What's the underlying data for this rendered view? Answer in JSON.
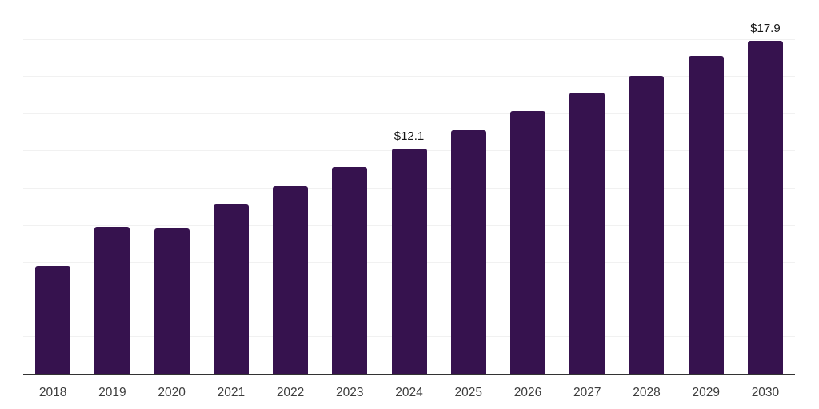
{
  "chart_data": {
    "type": "bar",
    "title": "",
    "xlabel": "",
    "ylabel": "",
    "categories": [
      "2018",
      "2019",
      "2020",
      "2021",
      "2022",
      "2023",
      "2024",
      "2025",
      "2026",
      "2027",
      "2028",
      "2029",
      "2030"
    ],
    "values": [
      5.8,
      7.9,
      7.8,
      9.1,
      10.1,
      11.1,
      12.1,
      13.1,
      14.1,
      15.1,
      16.0,
      17.1,
      17.9
    ],
    "data_labels": {
      "2024": "$12.1",
      "2030": "$17.9"
    },
    "ylim": [
      0,
      20
    ],
    "gridline_step": 2,
    "y_tick_labels_shown": false,
    "legend_position": "none",
    "grid": "horizontal",
    "colors": {
      "bar": "#36124E",
      "gridline": "#f1f1f1",
      "axis_line": "#333333",
      "tick_label": "#3d3d3d",
      "data_label": "#141414",
      "background": "#ffffff"
    }
  }
}
